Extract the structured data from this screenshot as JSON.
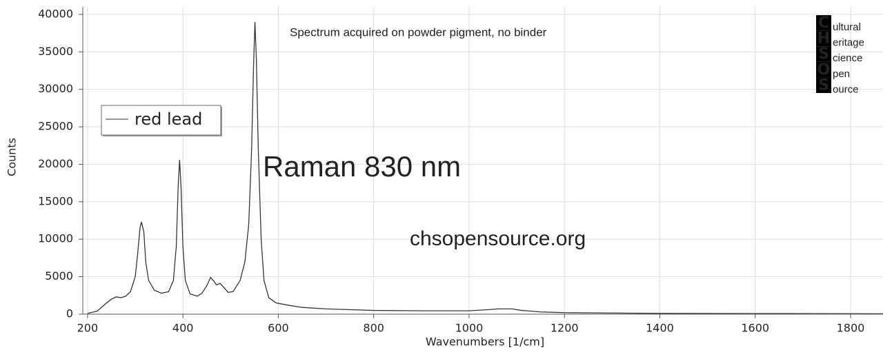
{
  "chart_data": {
    "type": "line",
    "title": "Raman 830 nm",
    "subtitle": "Spectrum acquired on powder pigment, no binder",
    "watermark": "chsopensource.org",
    "logo_letters": [
      "C",
      "H",
      "S",
      "O",
      "S"
    ],
    "logo_words": [
      "ultural",
      "eritage",
      "cience",
      "pen",
      "ource"
    ],
    "x_label": "Wavenumbers [1/cm]",
    "y_label": "Counts",
    "x": [
      200,
      220,
      240,
      250,
      260,
      270,
      280,
      290,
      300,
      305,
      310,
      313,
      318,
      322,
      328,
      340,
      355,
      370,
      380,
      386,
      390,
      393,
      396,
      400,
      405,
      415,
      430,
      440,
      450,
      458,
      465,
      470,
      478,
      485,
      495,
      505,
      520,
      530,
      538,
      544,
      548,
      551,
      554,
      558,
      564,
      570,
      580,
      595,
      620,
      650,
      700,
      800,
      900,
      1000,
      1040,
      1060,
      1090,
      1110,
      1150,
      1200,
      1300,
      1400,
      1600,
      1868
    ],
    "series": [
      {
        "name": "red lead",
        "color": "#333333",
        "values": [
          100,
          400,
          1500,
          2000,
          2300,
          2200,
          2400,
          3000,
          5000,
          8000,
          11500,
          12300,
          11000,
          7000,
          4500,
          3200,
          2800,
          3000,
          4500,
          9000,
          17000,
          20600,
          17000,
          9000,
          4500,
          2700,
          2400,
          2800,
          3800,
          4900,
          4400,
          3900,
          4100,
          3600,
          2900,
          3000,
          4500,
          7000,
          12000,
          22000,
          33000,
          39000,
          34000,
          22000,
          10000,
          4500,
          2200,
          1500,
          1200,
          900,
          700,
          500,
          450,
          450,
          600,
          700,
          700,
          500,
          300,
          200,
          150,
          100,
          80,
          60
        ]
      }
    ],
    "xlim": [
      190,
      1868
    ],
    "ylim": [
      0,
      41000
    ],
    "xticks": [
      200,
      400,
      600,
      800,
      1000,
      1200,
      1400,
      1600,
      1800
    ],
    "yticks": [
      0,
      5000,
      10000,
      15000,
      20000,
      25000,
      30000,
      35000,
      40000
    ],
    "grid": true,
    "legend": "upper left"
  }
}
